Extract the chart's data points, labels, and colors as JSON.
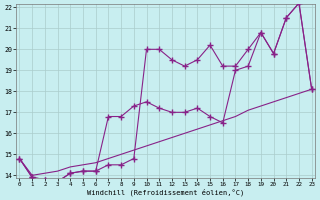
{
  "xlabel": "Windchill (Refroidissement éolien,°C)",
  "bg_color": "#c8eef0",
  "line_color": "#882288",
  "grid_color": "#aacccc",
  "line1_x": [
    0,
    1,
    2,
    3,
    4,
    5,
    6,
    7,
    8,
    9,
    10,
    11,
    12,
    13,
    14,
    15,
    16,
    17,
    18,
    19,
    20,
    21,
    22,
    23
  ],
  "line1_y": [
    14.8,
    13.9,
    13.8,
    13.7,
    14.1,
    14.2,
    14.2,
    14.5,
    14.5,
    14.8,
    20.0,
    20.0,
    19.5,
    19.2,
    19.5,
    20.2,
    19.2,
    19.2,
    20.0,
    20.8,
    19.8,
    21.5,
    22.2,
    18.1
  ],
  "line2_x": [
    0,
    1,
    2,
    3,
    4,
    5,
    6,
    7,
    8,
    9,
    10,
    11,
    12,
    13,
    14,
    15,
    16,
    17,
    18,
    19,
    20,
    21,
    22,
    23
  ],
  "line2_y": [
    14.8,
    13.9,
    13.8,
    13.7,
    14.1,
    14.2,
    14.2,
    16.8,
    16.8,
    17.3,
    17.5,
    17.2,
    17.0,
    17.0,
    17.2,
    16.8,
    16.5,
    19.0,
    19.2,
    20.8,
    19.8,
    21.5,
    22.2,
    18.1
  ],
  "line3_x": [
    0,
    1,
    2,
    3,
    4,
    5,
    6,
    7,
    8,
    9,
    10,
    11,
    12,
    13,
    14,
    15,
    16,
    17,
    18,
    19,
    20,
    21,
    22,
    23
  ],
  "line3_y": [
    14.8,
    14.0,
    14.1,
    14.2,
    14.4,
    14.5,
    14.6,
    14.8,
    15.0,
    15.2,
    15.4,
    15.6,
    15.8,
    16.0,
    16.2,
    16.4,
    16.6,
    16.8,
    17.1,
    17.3,
    17.5,
    17.7,
    17.9,
    18.1
  ],
  "xlim_min": 0,
  "xlim_max": 23,
  "ylim_min": 14,
  "ylim_max": 22,
  "xticks": [
    0,
    1,
    2,
    3,
    4,
    5,
    6,
    7,
    8,
    9,
    10,
    11,
    12,
    13,
    14,
    15,
    16,
    17,
    18,
    19,
    20,
    21,
    22,
    23
  ],
  "yticks": [
    14,
    15,
    16,
    17,
    18,
    19,
    20,
    21,
    22
  ]
}
